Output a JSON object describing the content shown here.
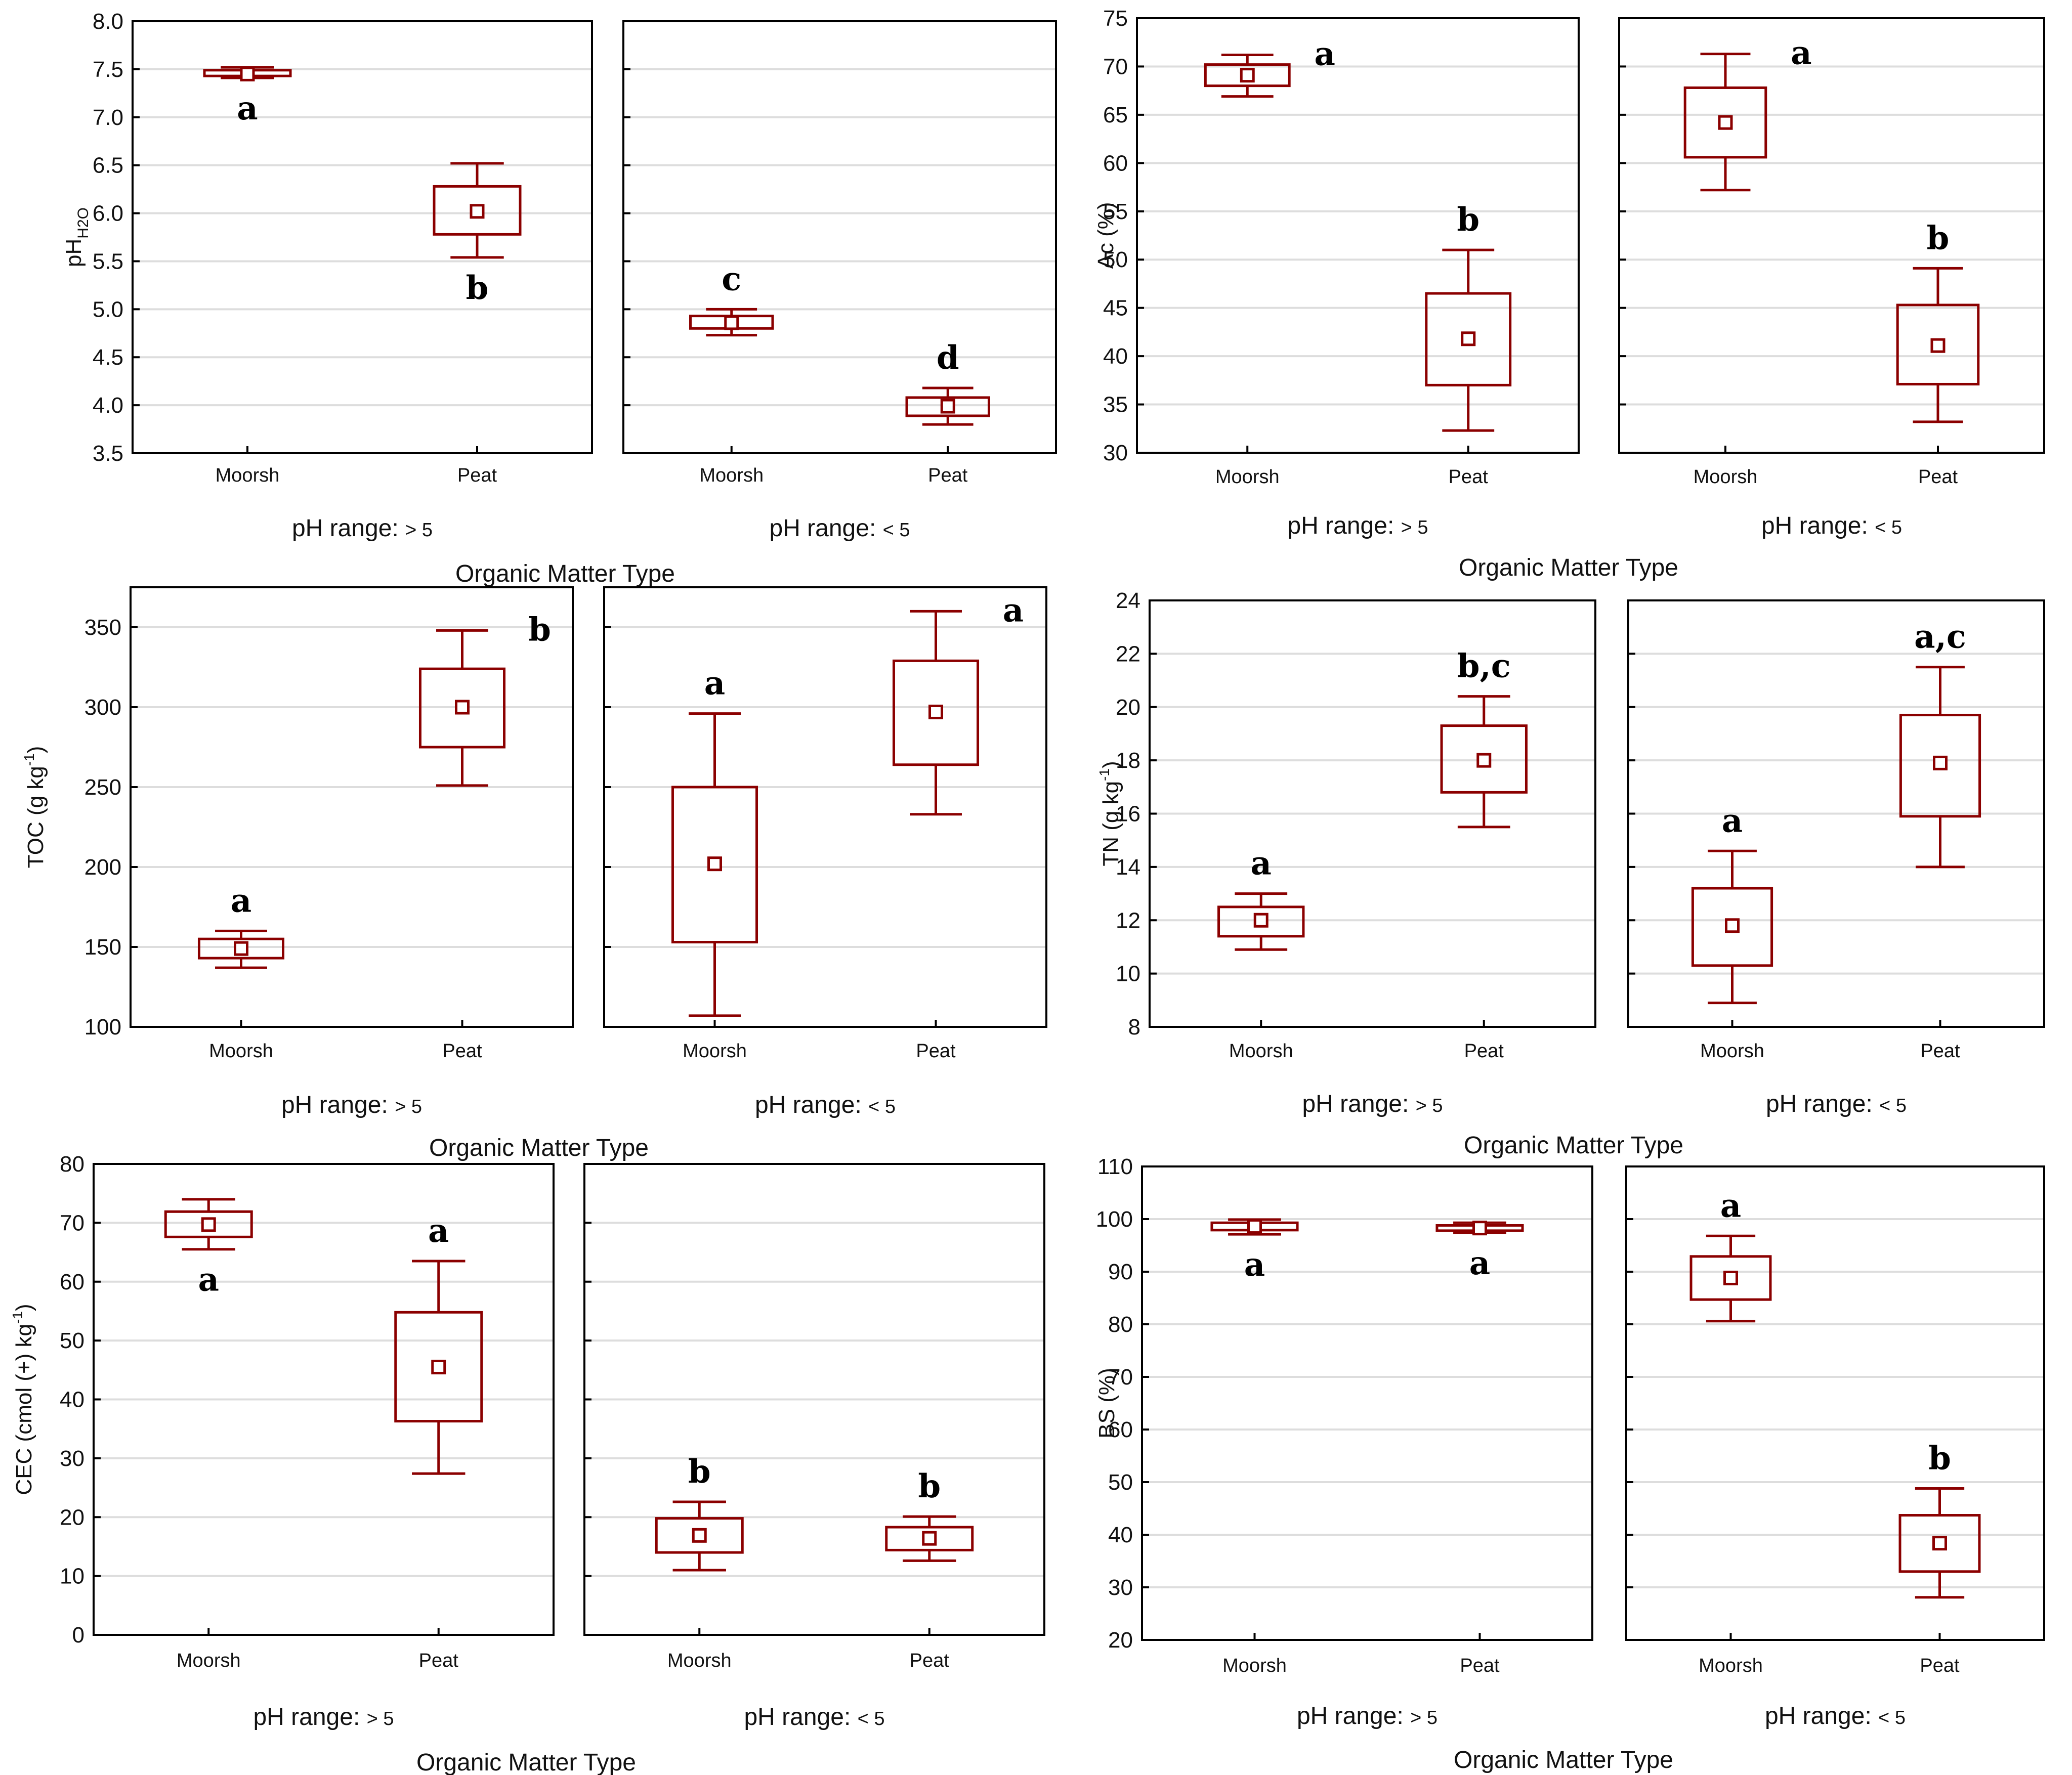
{
  "colors": {
    "box": "#8b0000",
    "frame": "#000000",
    "grid": "#dddddd",
    "text": "#111111"
  },
  "chart_data": [
    {
      "type": "box",
      "ylabel": {
        "main": "pH",
        "sub": "H2O"
      },
      "ylim": [
        3.5,
        8.0
      ],
      "yticks": [
        "3.5",
        "4.0",
        "4.5",
        "5.0",
        "5.5",
        "6.0",
        "6.5",
        "7.0",
        "7.5",
        "8.0"
      ],
      "xlabel": "Organic Matter Type",
      "categories": [
        "Moorsh",
        "Peat"
      ],
      "panels": [
        {
          "label": {
            "text": "pH range: ",
            "sign": "> 5"
          },
          "boxes": [
            {
              "category": "Moorsh",
              "mean": 7.45,
              "q1": 7.43,
              "q3": 7.49,
              "min": 7.41,
              "max": 7.52,
              "letter": "a",
              "letter_pos": "below"
            },
            {
              "category": "Peat",
              "mean": 6.02,
              "q1": 5.78,
              "q3": 6.28,
              "min": 5.54,
              "max": 6.52,
              "letter": "b",
              "letter_pos": "below"
            }
          ]
        },
        {
          "label": {
            "text": "pH range: ",
            "sign": "< 5"
          },
          "boxes": [
            {
              "category": "Moorsh",
              "mean": 4.86,
              "q1": 4.8,
              "q3": 4.93,
              "min": 4.73,
              "max": 5.0,
              "letter": "c",
              "letter_pos": "above"
            },
            {
              "category": "Peat",
              "mean": 3.99,
              "q1": 3.89,
              "q3": 4.08,
              "min": 3.8,
              "max": 4.18,
              "letter": "d",
              "letter_pos": "above"
            }
          ]
        }
      ]
    },
    {
      "type": "box",
      "ylabel": {
        "main": "Ac (%)"
      },
      "ylim": [
        30,
        75
      ],
      "yticks": [
        "30",
        "35",
        "40",
        "45",
        "50",
        "55",
        "60",
        "65",
        "70",
        "75"
      ],
      "xlabel": "Organic Matter Type",
      "categories": [
        "Moorsh",
        "Peat"
      ],
      "panels": [
        {
          "label": {
            "text": "pH range: ",
            "sign": "> 5"
          },
          "boxes": [
            {
              "category": "Moorsh",
              "mean": 69.1,
              "q1": 68.0,
              "q3": 70.2,
              "min": 66.9,
              "max": 71.2,
              "letter": "a",
              "letter_pos": "right"
            },
            {
              "category": "Peat",
              "mean": 41.8,
              "q1": 37.0,
              "q3": 46.5,
              "min": 32.3,
              "max": 51.0,
              "letter": "b",
              "letter_pos": "above"
            }
          ]
        },
        {
          "label": {
            "text": "pH range: ",
            "sign": "< 5"
          },
          "boxes": [
            {
              "category": "Moorsh",
              "mean": 64.2,
              "q1": 60.6,
              "q3": 67.8,
              "min": 57.2,
              "max": 71.3,
              "letter": "a",
              "letter_pos": "right"
            },
            {
              "category": "Peat",
              "mean": 41.1,
              "q1": 37.1,
              "q3": 45.3,
              "min": 33.2,
              "max": 49.1,
              "letter": "b",
              "letter_pos": "above"
            }
          ]
        }
      ]
    },
    {
      "type": "box",
      "ylabel": {
        "main": "TOC (g kg",
        "sup": "-1",
        "end": ")"
      },
      "ylim": [
        100,
        375
      ],
      "yticks": [
        "100",
        "150",
        "200",
        "250",
        "300",
        "350"
      ],
      "xlabel": "Organic Matter Type",
      "categories": [
        "Moorsh",
        "Peat"
      ],
      "panels": [
        {
          "label": {
            "text": "pH range: ",
            "sign": "> 5"
          },
          "boxes": [
            {
              "category": "Moorsh",
              "mean": 149,
              "q1": 143,
              "q3": 155,
              "min": 137,
              "max": 160,
              "letter": "a",
              "letter_pos": "above"
            },
            {
              "category": "Peat",
              "mean": 300,
              "q1": 275,
              "q3": 324,
              "min": 251,
              "max": 348,
              "letter": "b",
              "letter_pos": "right"
            }
          ]
        },
        {
          "label": {
            "text": "pH range: ",
            "sign": "< 5"
          },
          "boxes": [
            {
              "category": "Moorsh",
              "mean": 202,
              "q1": 153,
              "q3": 250,
              "min": 107,
              "max": 296,
              "letter": "a",
              "letter_pos": "above"
            },
            {
              "category": "Peat",
              "mean": 297,
              "q1": 264,
              "q3": 329,
              "min": 233,
              "max": 360,
              "letter": "a",
              "letter_pos": "right"
            }
          ]
        }
      ]
    },
    {
      "type": "box",
      "ylabel": {
        "main": "TN (g kg",
        "sup": "-1",
        "end": ")"
      },
      "ylim": [
        8,
        24
      ],
      "yticks": [
        "8",
        "10",
        "12",
        "14",
        "16",
        "18",
        "20",
        "22",
        "24"
      ],
      "xlabel": "Organic Matter Type",
      "categories": [
        "Moorsh",
        "Peat"
      ],
      "panels": [
        {
          "label": {
            "text": "pH range: ",
            "sign": "> 5"
          },
          "boxes": [
            {
              "category": "Moorsh",
              "mean": 12.0,
              "q1": 11.4,
              "q3": 12.5,
              "min": 10.9,
              "max": 13.0,
              "letter": "a",
              "letter_pos": "above"
            },
            {
              "category": "Peat",
              "mean": 18.0,
              "q1": 16.8,
              "q3": 19.3,
              "min": 15.5,
              "max": 20.4,
              "letter": "b,c",
              "letter_pos": "above"
            }
          ]
        },
        {
          "label": {
            "text": "pH range: ",
            "sign": "< 5"
          },
          "boxes": [
            {
              "category": "Moorsh",
              "mean": 11.8,
              "q1": 10.3,
              "q3": 13.2,
              "min": 8.9,
              "max": 14.6,
              "letter": "a",
              "letter_pos": "above"
            },
            {
              "category": "Peat",
              "mean": 17.9,
              "q1": 15.9,
              "q3": 19.7,
              "min": 14.0,
              "max": 21.5,
              "letter": "a,c",
              "letter_pos": "above"
            }
          ]
        }
      ]
    },
    {
      "type": "box",
      "ylabel": {
        "main": "CEC (cmol (+) kg",
        "sup": "-1",
        "end": ")"
      },
      "ylim": [
        0,
        80
      ],
      "yticks": [
        "0",
        "10",
        "20",
        "30",
        "40",
        "50",
        "60",
        "70",
        "80"
      ],
      "xlabel": "Organic Matter Type",
      "categories": [
        "Moorsh",
        "Peat"
      ],
      "panels": [
        {
          "label": {
            "text": "pH range: ",
            "sign": "> 5"
          },
          "boxes": [
            {
              "category": "Moorsh",
              "mean": 69.7,
              "q1": 67.6,
              "q3": 71.9,
              "min": 65.5,
              "max": 74.0,
              "letter": "a",
              "letter_pos": "below"
            },
            {
              "category": "Peat",
              "mean": 45.5,
              "q1": 36.3,
              "q3": 54.8,
              "min": 27.4,
              "max": 63.5,
              "letter": "a",
              "letter_pos": "above"
            }
          ]
        },
        {
          "label": {
            "text": "pH range: ",
            "sign": "< 5"
          },
          "boxes": [
            {
              "category": "Moorsh",
              "mean": 16.9,
              "q1": 14.0,
              "q3": 19.8,
              "min": 11.0,
              "max": 22.6,
              "letter": "b",
              "letter_pos": "above"
            },
            {
              "category": "Peat",
              "mean": 16.4,
              "q1": 14.4,
              "q3": 18.3,
              "min": 12.6,
              "max": 20.1,
              "letter": "b",
              "letter_pos": "above"
            }
          ]
        }
      ]
    },
    {
      "type": "box",
      "ylabel": {
        "main": "BS (%)"
      },
      "ylim": [
        20,
        110
      ],
      "yticks": [
        "20",
        "30",
        "40",
        "50",
        "60",
        "70",
        "80",
        "90",
        "100",
        "110"
      ],
      "xlabel": "Organic Matter Type",
      "categories": [
        "Moorsh",
        "Peat"
      ],
      "panels": [
        {
          "label": {
            "text": "pH range: ",
            "sign": "> 5"
          },
          "boxes": [
            {
              "category": "Moorsh",
              "mean": 98.6,
              "q1": 97.9,
              "q3": 99.3,
              "min": 97.1,
              "max": 99.9,
              "letter": "a",
              "letter_pos": "below"
            },
            {
              "category": "Peat",
              "mean": 98.3,
              "q1": 97.8,
              "q3": 98.8,
              "min": 97.4,
              "max": 99.3,
              "letter": "a",
              "letter_pos": "below"
            }
          ]
        },
        {
          "label": {
            "text": "pH range: ",
            "sign": "< 5"
          },
          "boxes": [
            {
              "category": "Moorsh",
              "mean": 88.8,
              "q1": 84.7,
              "q3": 92.9,
              "min": 80.6,
              "max": 96.8,
              "letter": "a",
              "letter_pos": "above"
            },
            {
              "category": "Peat",
              "mean": 38.4,
              "q1": 33.0,
              "q3": 43.7,
              "min": 28.1,
              "max": 48.8,
              "letter": "b",
              "letter_pos": "above"
            }
          ]
        }
      ]
    }
  ]
}
